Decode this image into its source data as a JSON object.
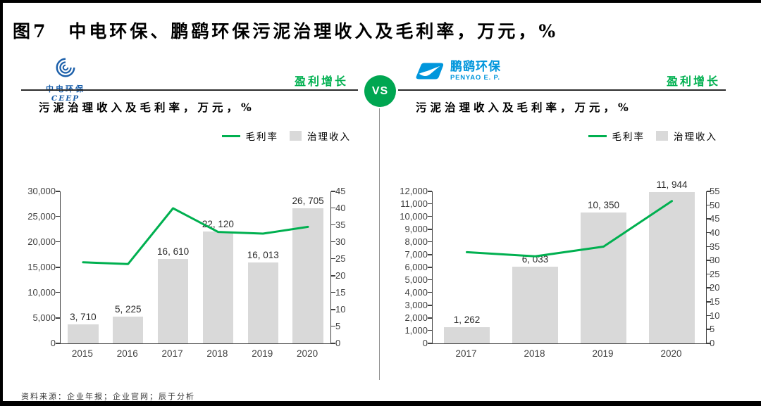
{
  "page": {
    "title": "图7　中电环保、鹏鹞环保污泥治理收入及毛利率，万元，%",
    "vs_label": "VS",
    "footer": "资料来源：企业年报；企业官网；辰于分析",
    "colors": {
      "accent_green": "#00B050",
      "vs_green": "#00A651",
      "bar_gray": "#D9D9D9",
      "ceep_blue": "#1B5FAA",
      "penyao_blue": "#0096DC"
    }
  },
  "panels": [
    {
      "logo_cn": "中电环保",
      "logo_en": "CEEP",
      "tag": "盈利增长",
      "subtitle": "污泥治理收入及毛利率，万元，%"
    },
    {
      "logo_cn": "鹏鹞环保",
      "logo_en": "PENYAO E. P.",
      "tag": "盈利增长",
      "subtitle": "污泥治理收入及毛利率，万元，%"
    }
  ],
  "chart_data": [
    {
      "type": "bar+line",
      "company": "中电环保 CEEP",
      "title": "污泥治理收入及毛利率，万元，%",
      "categories": [
        "2015",
        "2016",
        "2017",
        "2018",
        "2019",
        "2020"
      ],
      "series": [
        {
          "name": "毛利率",
          "type": "line",
          "axis": "right",
          "unit": "%",
          "color": "#00B050",
          "values": [
            24,
            23.5,
            40,
            33,
            32.5,
            34.5
          ]
        },
        {
          "name": "治理收入",
          "type": "bar",
          "axis": "left",
          "unit": "万元",
          "color": "#D9D9D9",
          "values": [
            3710,
            5225,
            16610,
            22120,
            16013,
            26705
          ],
          "labels": [
            "3, 710",
            "5, 225",
            "16, 610",
            "22, 120",
            "16, 013",
            "26, 705"
          ]
        }
      ],
      "left_axis": {
        "min": 0,
        "max": 30000,
        "step": 5000,
        "tick_labels": [
          "30,000",
          "25,000",
          "20,000",
          "15,000",
          "10,000",
          "5,000",
          "0"
        ]
      },
      "right_axis": {
        "min": 0,
        "max": 45,
        "step": 5,
        "tick_labels": [
          "45",
          "40",
          "35",
          "30",
          "25",
          "20",
          "15",
          "10",
          "5",
          "0"
        ]
      },
      "grid": false,
      "legend_position": "top-right"
    },
    {
      "type": "bar+line",
      "company": "鹏鹞环保 PENYAO E.P.",
      "title": "污泥治理收入及毛利率，万元，%",
      "categories": [
        "2017",
        "2018",
        "2019",
        "2020"
      ],
      "series": [
        {
          "name": "毛利率",
          "type": "line",
          "axis": "right",
          "unit": "%",
          "color": "#00B050",
          "values": [
            33,
            31.5,
            35,
            51.5
          ]
        },
        {
          "name": "治理收入",
          "type": "bar",
          "axis": "left",
          "unit": "万元",
          "color": "#D9D9D9",
          "values": [
            1262,
            6033,
            10350,
            11944
          ],
          "labels": [
            "1, 262",
            "6, 033",
            "10, 350",
            "11, 944"
          ]
        }
      ],
      "left_axis": {
        "min": 0,
        "max": 12000,
        "step": 1000,
        "tick_labels": [
          "12,000",
          "11,000",
          "10,000",
          "9,000",
          "8,000",
          "7,000",
          "6,000",
          "5,000",
          "4,000",
          "3,000",
          "2,000",
          "1,000",
          "0"
        ]
      },
      "right_axis": {
        "min": 0,
        "max": 55,
        "step": 5,
        "tick_labels": [
          "55",
          "50",
          "45",
          "40",
          "35",
          "30",
          "25",
          "20",
          "15",
          "10",
          "5",
          "0"
        ]
      },
      "grid": false,
      "legend_position": "top-right"
    }
  ]
}
